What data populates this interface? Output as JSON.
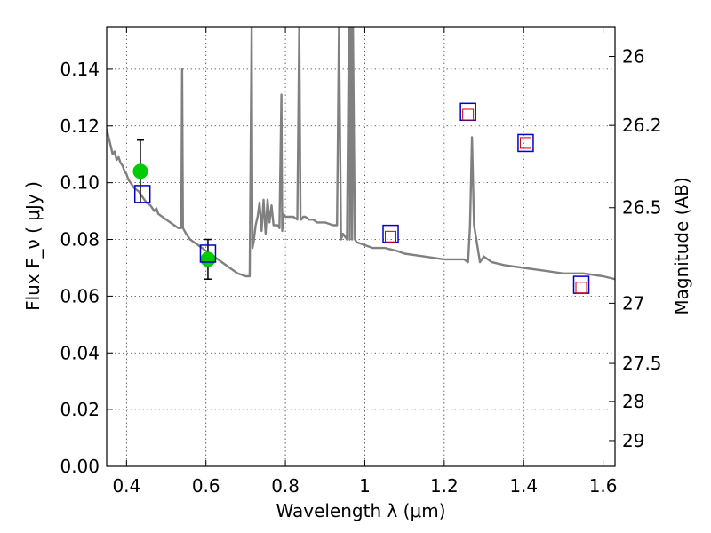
{
  "chart_data": {
    "type": "scatter",
    "xlabel": "Wavelength  λ (μm)",
    "ylabel": "Flux  F_ν  ( μJy )",
    "ylabel_right": "Magnitude (AB)",
    "xlim": [
      0.35,
      1.63
    ],
    "ylim": [
      0.0,
      0.155
    ],
    "grid": true,
    "x_ticks": [
      0.4,
      0.6,
      0.8,
      1.0,
      1.2,
      1.4,
      1.6
    ],
    "x_tick_labels": [
      "0.4",
      "0.6",
      "0.8",
      "1",
      "1.2",
      "1.4",
      "1.6"
    ],
    "y_ticks": [
      0.0,
      0.02,
      0.04,
      0.06,
      0.08,
      0.1,
      0.12,
      0.14
    ],
    "y_tick_labels": [
      "0.00",
      "0.02",
      "0.04",
      "0.06",
      "0.08",
      "0.10",
      "0.12",
      "0.14"
    ],
    "right_ticks": [
      {
        "label": "26",
        "flux": 0.1445
      },
      {
        "label": "26.2",
        "flux": 0.1202
      },
      {
        "label": "26.5",
        "flux": 0.0912
      },
      {
        "label": "27",
        "flux": 0.0575
      },
      {
        "label": "27.5",
        "flux": 0.0363
      },
      {
        "label": "28",
        "flux": 0.0229
      },
      {
        "label": "29",
        "flux": 0.0091
      }
    ],
    "series": [
      {
        "kind": "line",
        "color": "#808080",
        "x": [
          0.35,
          0.355,
          0.36,
          0.365,
          0.37,
          0.375,
          0.38,
          0.385,
          0.39,
          0.395,
          0.4,
          0.405,
          0.41,
          0.415,
          0.42,
          0.43,
          0.44,
          0.45,
          0.46,
          0.47,
          0.475,
          0.48,
          0.49,
          0.5,
          0.51,
          0.52,
          0.53,
          0.538,
          0.54,
          0.542,
          0.55,
          0.56,
          0.57,
          0.58,
          0.6,
          0.62,
          0.64,
          0.66,
          0.68,
          0.7,
          0.71,
          0.715,
          0.717,
          0.72,
          0.725,
          0.73,
          0.735,
          0.74,
          0.745,
          0.75,
          0.755,
          0.76,
          0.765,
          0.77,
          0.78,
          0.785,
          0.79,
          0.792,
          0.795,
          0.8,
          0.81,
          0.82,
          0.83,
          0.835,
          0.838,
          0.84,
          0.845,
          0.85,
          0.86,
          0.87,
          0.88,
          0.9,
          0.92,
          0.93,
          0.935,
          0.94,
          0.945,
          0.955,
          0.96,
          0.962,
          0.965,
          0.968,
          0.97,
          0.975,
          0.98,
          1.0,
          1.02,
          1.05,
          1.08,
          1.1,
          1.15,
          1.2,
          1.25,
          1.26,
          1.265,
          1.27,
          1.275,
          1.29,
          1.3,
          1.32,
          1.35,
          1.4,
          1.45,
          1.5,
          1.55,
          1.6,
          1.63
        ],
        "y": [
          0.119,
          0.116,
          0.113,
          0.11,
          0.111,
          0.108,
          0.109,
          0.107,
          0.106,
          0.104,
          0.103,
          0.101,
          0.1,
          0.099,
          0.098,
          0.097,
          0.095,
          0.093,
          0.092,
          0.09,
          0.091,
          0.089,
          0.088,
          0.087,
          0.086,
          0.085,
          0.084,
          0.084,
          0.14,
          0.084,
          0.082,
          0.08,
          0.079,
          0.078,
          0.076,
          0.074,
          0.072,
          0.07,
          0.068,
          0.067,
          0.067,
          0.155,
          0.077,
          0.079,
          0.085,
          0.088,
          0.093,
          0.083,
          0.094,
          0.082,
          0.094,
          0.086,
          0.092,
          0.085,
          0.085,
          0.084,
          0.131,
          0.083,
          0.089,
          0.088,
          0.088,
          0.088,
          0.087,
          0.155,
          0.087,
          0.087,
          0.088,
          0.088,
          0.087,
          0.087,
          0.086,
          0.086,
          0.085,
          0.085,
          0.155,
          0.08,
          0.082,
          0.08,
          0.155,
          0.08,
          0.155,
          0.08,
          0.155,
          0.08,
          0.079,
          0.078,
          0.077,
          0.077,
          0.076,
          0.075,
          0.074,
          0.073,
          0.073,
          0.072,
          0.085,
          0.116,
          0.085,
          0.072,
          0.074,
          0.072,
          0.071,
          0.07,
          0.069,
          0.068,
          0.068,
          0.067,
          0.066
        ]
      },
      {
        "kind": "errorbar",
        "color": "#00cc00",
        "x": [
          0.435,
          0.605
        ],
        "y": [
          0.104,
          0.073
        ],
        "yerr": [
          0.011,
          0.007
        ]
      },
      {
        "kind": "open-square",
        "color": "#0000cc",
        "x": [
          0.44,
          0.605,
          1.065,
          1.26,
          1.405,
          1.545
        ],
        "y": [
          0.096,
          0.075,
          0.082,
          0.125,
          0.114,
          0.064
        ]
      },
      {
        "kind": "small-square",
        "color": "#cc0000",
        "x": [
          1.065,
          1.26,
          1.405,
          1.545
        ],
        "y": [
          0.081,
          0.124,
          0.114,
          0.063
        ]
      }
    ]
  }
}
